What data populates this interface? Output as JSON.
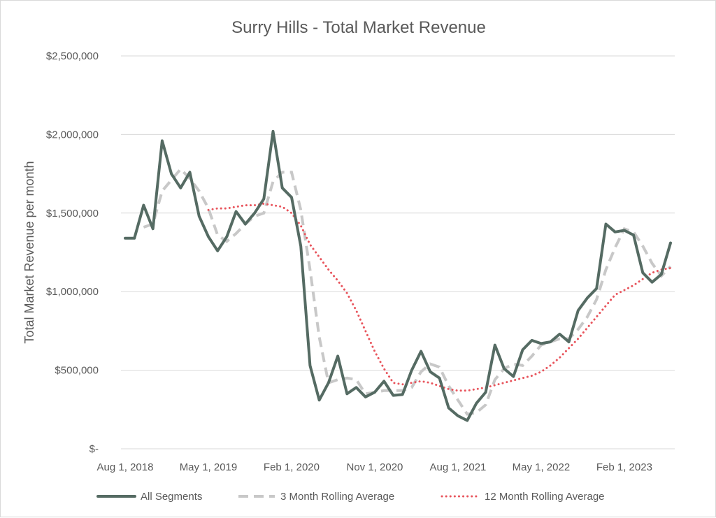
{
  "chart_data": {
    "type": "line",
    "title": "Surry Hills - Total Market Revenue",
    "xlabel": "",
    "ylabel": "Total Market Revenue per month",
    "ylim": [
      0,
      2500000
    ],
    "y_ticks": [
      0,
      500000,
      1000000,
      1500000,
      2000000,
      2500000
    ],
    "y_tick_labels": [
      "$-",
      "$500,000",
      "$1,000,000",
      "$1,500,000",
      "$2,000,000",
      "$2,500,000"
    ],
    "x_start": "2018-08",
    "x_tick_labels": [
      "Aug 1, 2018",
      "May 1, 2019",
      "Feb 1, 2020",
      "Nov 1, 2020",
      "Aug 1, 2021",
      "May 1, 2022",
      "Feb 1, 2023"
    ],
    "x_tick_months": [
      "2018-08",
      "2019-05",
      "2020-02",
      "2020-11",
      "2021-08",
      "2022-05",
      "2023-02"
    ],
    "grid": true,
    "legend_position": "bottom",
    "x": [
      "2018-08",
      "2018-09",
      "2018-10",
      "2018-11",
      "2018-12",
      "2019-01",
      "2019-02",
      "2019-03",
      "2019-04",
      "2019-05",
      "2019-06",
      "2019-07",
      "2019-08",
      "2019-09",
      "2019-10",
      "2019-11",
      "2019-12",
      "2020-01",
      "2020-02",
      "2020-03",
      "2020-04",
      "2020-05",
      "2020-06",
      "2020-07",
      "2020-08",
      "2020-09",
      "2020-10",
      "2020-11",
      "2020-12",
      "2021-01",
      "2021-02",
      "2021-03",
      "2021-04",
      "2021-05",
      "2021-06",
      "2021-07",
      "2021-08",
      "2021-09",
      "2021-10",
      "2021-11",
      "2021-12",
      "2022-01",
      "2022-02",
      "2022-03",
      "2022-04",
      "2022-05",
      "2022-06",
      "2022-07",
      "2022-08",
      "2022-09",
      "2022-10",
      "2022-11",
      "2022-12",
      "2023-01",
      "2023-02",
      "2023-03",
      "2023-04",
      "2023-05",
      "2023-06",
      "2023-07"
    ],
    "series": [
      {
        "name": "All Segments",
        "color": "#556b63",
        "style": "solid",
        "values": [
          1340000,
          1340000,
          1550000,
          1400000,
          1960000,
          1750000,
          1660000,
          1760000,
          1480000,
          1350000,
          1260000,
          1350000,
          1510000,
          1430000,
          1500000,
          1590000,
          2020000,
          1660000,
          1600000,
          1290000,
          530000,
          310000,
          420000,
          590000,
          350000,
          390000,
          330000,
          360000,
          430000,
          340000,
          345000,
          500000,
          620000,
          490000,
          450000,
          260000,
          210000,
          180000,
          290000,
          360000,
          660000,
          510000,
          460000,
          630000,
          690000,
          670000,
          680000,
          730000,
          680000,
          880000,
          960000,
          1020000,
          1430000,
          1380000,
          1390000,
          1360000,
          1120000,
          1060000,
          1110000,
          1310000
        ]
      },
      {
        "name": "3 Month Rolling Average",
        "color": "#c8c8c8",
        "style": "dashed",
        "values": [
          null,
          null,
          1410000,
          1430000,
          1640000,
          1710000,
          1780000,
          1720000,
          1640000,
          1530000,
          1360000,
          1320000,
          1370000,
          1430000,
          1480000,
          1500000,
          1700000,
          1760000,
          1760000,
          1520000,
          1140000,
          710000,
          420000,
          440000,
          450000,
          440000,
          350000,
          360000,
          370000,
          370000,
          370000,
          390000,
          490000,
          540000,
          520000,
          400000,
          310000,
          220000,
          230000,
          280000,
          440000,
          510000,
          540000,
          530000,
          590000,
          660000,
          680000,
          700000,
          700000,
          760000,
          840000,
          950000,
          1140000,
          1280000,
          1400000,
          1380000,
          1290000,
          1180000,
          1100000,
          1160000
        ]
      },
      {
        "name": "12 Month Rolling Average",
        "color": "#e8545c",
        "style": "dotted",
        "values": [
          null,
          null,
          null,
          null,
          null,
          null,
          null,
          null,
          null,
          1520000,
          1530000,
          1530000,
          1540000,
          1550000,
          1550000,
          1560000,
          1550000,
          1540000,
          1500000,
          1420000,
          1300000,
          1220000,
          1140000,
          1070000,
          990000,
          880000,
          750000,
          620000,
          510000,
          420000,
          410000,
          420000,
          430000,
          420000,
          400000,
          380000,
          370000,
          370000,
          380000,
          390000,
          405000,
          420000,
          435000,
          450000,
          465000,
          490000,
          530000,
          580000,
          640000,
          700000,
          770000,
          840000,
          910000,
          980000,
          1010000,
          1040000,
          1080000,
          1120000,
          1140000,
          1150000
        ]
      }
    ]
  }
}
